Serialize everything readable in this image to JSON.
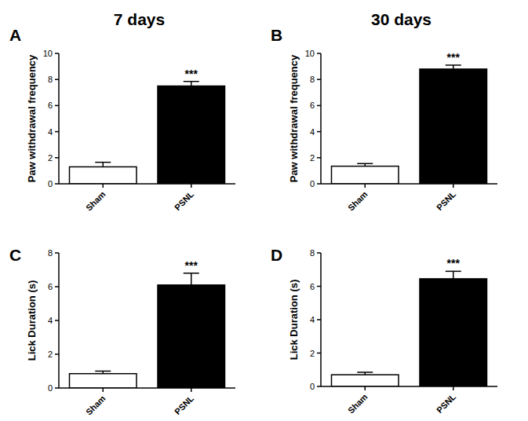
{
  "chart_data": [
    {
      "type": "bar",
      "panel": "A",
      "title": "7 days",
      "y_label": "Paw withdrawal frequency",
      "categories": [
        "Sham",
        "PSNL"
      ],
      "values": [
        1.3,
        7.5
      ],
      "errors": [
        0.35,
        0.35
      ],
      "colors": [
        "#ffffff",
        "#000000"
      ],
      "ylim": [
        0,
        10
      ],
      "yticks": [
        0,
        2,
        4,
        6,
        8,
        10
      ],
      "annotations": [
        {
          "category": "PSNL",
          "text": "***"
        }
      ]
    },
    {
      "type": "bar",
      "panel": "B",
      "title": "30 days",
      "y_label": "Paw withdrawal frequency",
      "categories": [
        "Sham",
        "PSNL"
      ],
      "values": [
        1.35,
        8.8
      ],
      "errors": [
        0.2,
        0.3
      ],
      "colors": [
        "#ffffff",
        "#000000"
      ],
      "ylim": [
        0,
        10
      ],
      "yticks": [
        0,
        2,
        4,
        6,
        8,
        10
      ],
      "annotations": [
        {
          "category": "PSNL",
          "text": "***"
        }
      ]
    },
    {
      "type": "bar",
      "panel": "C",
      "y_label": "Lick Duration (s)",
      "categories": [
        "Sham",
        "PSNL"
      ],
      "values": [
        0.85,
        6.1
      ],
      "errors": [
        0.15,
        0.7
      ],
      "colors": [
        "#ffffff",
        "#000000"
      ],
      "ylim": [
        0,
        8
      ],
      "yticks": [
        0,
        2,
        4,
        6,
        8
      ],
      "annotations": [
        {
          "category": "PSNL",
          "text": "***"
        }
      ]
    },
    {
      "type": "bar",
      "panel": "D",
      "y_label": "Lick Duration (s)",
      "categories": [
        "Sham",
        "PSNL"
      ],
      "values": [
        0.7,
        6.45
      ],
      "errors": [
        0.15,
        0.45
      ],
      "colors": [
        "#ffffff",
        "#000000"
      ],
      "ylim": [
        0,
        8
      ],
      "yticks": [
        0,
        2,
        4,
        6,
        8
      ],
      "annotations": [
        {
          "category": "PSNL",
          "text": "***"
        }
      ]
    }
  ]
}
